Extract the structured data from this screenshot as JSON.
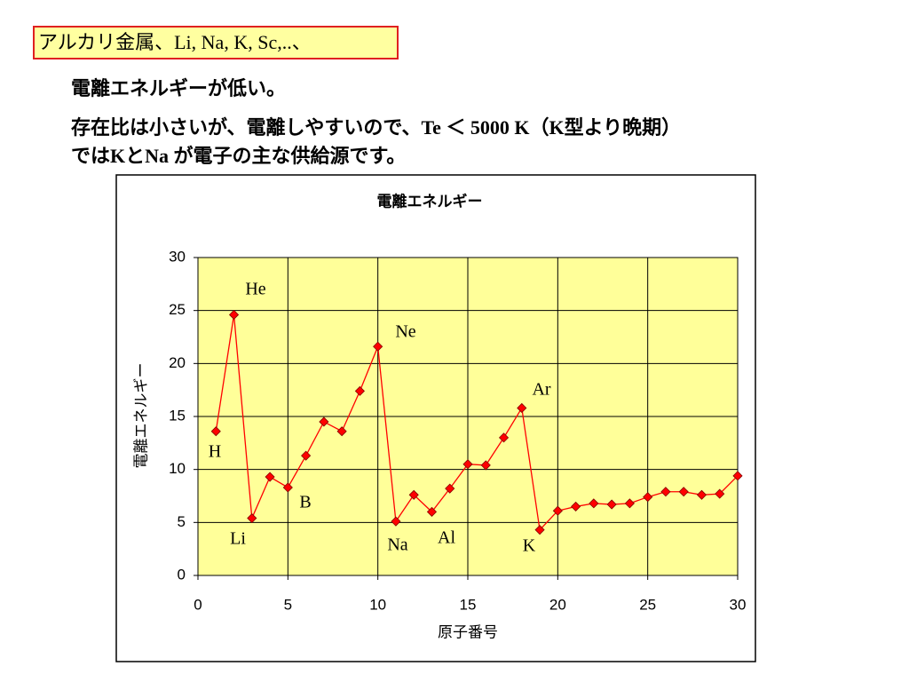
{
  "header": {
    "box": "アルカリ金属、Li, Na, K, Sc,..、",
    "line1": "電離エネルギーが低い。",
    "para": [
      "存在比は小さいが、電離しやすいので、Te ＜ 5000 K（K型より晩期）",
      "ではKとNa が電子の主な供給源です。"
    ]
  },
  "chart_data": {
    "type": "line",
    "title": "電離エネルギー",
    "x_label": "原子番号",
    "y_label": "電離エネルギー",
    "x": [
      1,
      2,
      3,
      4,
      5,
      6,
      7,
      8,
      9,
      10,
      11,
      12,
      13,
      14,
      15,
      16,
      17,
      18,
      19,
      20,
      21,
      22,
      23,
      24,
      25,
      26,
      27,
      28,
      29,
      30
    ],
    "series": [
      {
        "name": "電離エネルギー",
        "color": "#ff0000",
        "values": [
          13.6,
          24.6,
          5.4,
          9.3,
          8.3,
          11.3,
          14.5,
          13.6,
          17.4,
          21.6,
          5.1,
          7.6,
          6.0,
          8.2,
          10.5,
          10.4,
          13.0,
          15.8,
          4.3,
          6.1,
          6.5,
          6.8,
          6.7,
          6.8,
          7.4,
          7.9,
          7.9,
          7.6,
          7.7,
          9.4
        ]
      }
    ],
    "xlim": [
      0,
      30
    ],
    "xticks": [
      0,
      5,
      10,
      15,
      20,
      25,
      30
    ],
    "ylim": [
      0,
      30
    ],
    "yticks": [
      0,
      5,
      10,
      15,
      20,
      25,
      30
    ],
    "grid": true,
    "annotations": [
      "H",
      "He",
      "Li",
      "B",
      "Ne",
      "Na",
      "Al",
      "Ar",
      "K"
    ]
  }
}
